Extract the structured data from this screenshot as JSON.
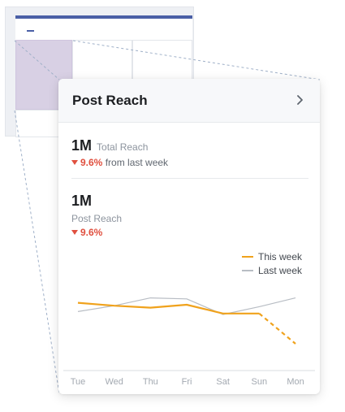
{
  "card": {
    "title": "Post Reach",
    "total_reach": {
      "value": "1M",
      "label": "Total Reach",
      "change_pct": "9.6%",
      "change_suffix": "from last week"
    },
    "post_reach": {
      "value": "1M",
      "label": "Post Reach",
      "change_pct": "9.6%"
    }
  },
  "icons": {
    "header_action": "chevron-right-icon",
    "change_direction": "triangle-down-icon"
  },
  "colors": {
    "this_week": "#f0a21c",
    "last_week": "#b8bdc4",
    "decrease": "#e0503f"
  },
  "chart_data": {
    "type": "line",
    "categories": [
      "Tue",
      "Wed",
      "Thu",
      "Fri",
      "Sat",
      "Sun",
      "Mon"
    ],
    "series": [
      {
        "name": "This week",
        "values": [
          62,
          59,
          57,
          60,
          51,
          51,
          20
        ],
        "dashed_from_index": 5
      },
      {
        "name": "Last week",
        "values": [
          53,
          59,
          67,
          66,
          50,
          58,
          67
        ]
      }
    ],
    "ylim": [
      0,
      100
    ],
    "grid": false,
    "legend": "top-right"
  }
}
